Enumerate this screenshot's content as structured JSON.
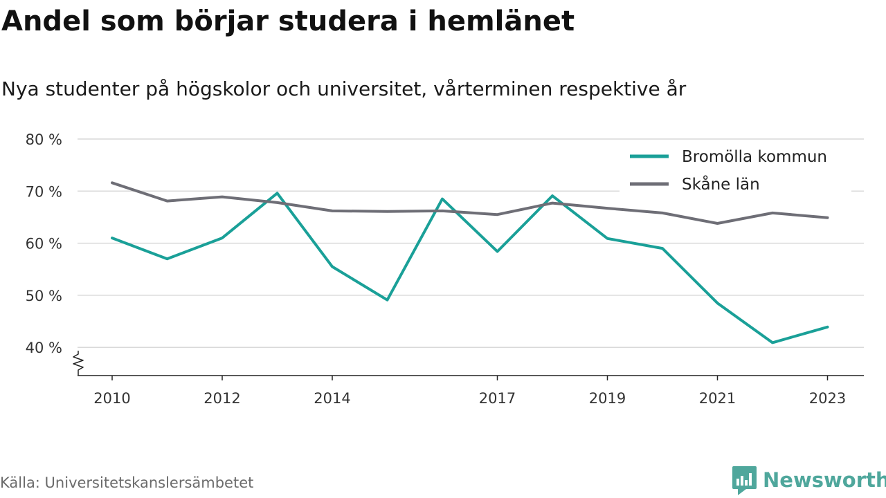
{
  "title": "Andel som börjar studera i hemlänet",
  "subtitle": "Nya studenter på högskolor och universitet, vårterminen respektive år",
  "source": "Källa: Universitetskanslersämbetet",
  "brand": {
    "name": "Newsworthy",
    "icon": "newsworthy-chart-icon",
    "color": "#4fa79c"
  },
  "chart_data": {
    "type": "line",
    "x": [
      2010,
      2011,
      2012,
      2013,
      2014,
      2015,
      2016,
      2017,
      2018,
      2019,
      2020,
      2021,
      2022,
      2023
    ],
    "x_ticks": [
      2010,
      2012,
      2014,
      2017,
      2019,
      2021,
      2023
    ],
    "x_tick_labels": [
      "2010",
      "2012",
      "2014",
      "2017",
      "2019",
      "2021",
      "2023"
    ],
    "y_ticks": [
      40,
      50,
      60,
      70,
      80
    ],
    "y_tick_labels": [
      "40 %",
      "50 %",
      "60 %",
      "70 %",
      "80 %"
    ],
    "ylim": [
      35,
      80
    ],
    "xlim": [
      2009.4,
      2023.65
    ],
    "axis_break": true,
    "grid": true,
    "legend_position": "top-right",
    "series": [
      {
        "name": "Bromölla kommun",
        "color": "#1aa098",
        "values": [
          61.0,
          57.0,
          61.0,
          69.6,
          55.5,
          49.1,
          68.5,
          58.4,
          69.1,
          60.9,
          59.0,
          48.5,
          40.9,
          43.9
        ]
      },
      {
        "name": "Skåne län",
        "color": "#6e6e76",
        "values": [
          71.6,
          68.1,
          68.9,
          67.8,
          66.2,
          66.1,
          66.2,
          65.5,
          67.7,
          66.7,
          65.8,
          63.8,
          65.8,
          64.9
        ]
      }
    ]
  }
}
